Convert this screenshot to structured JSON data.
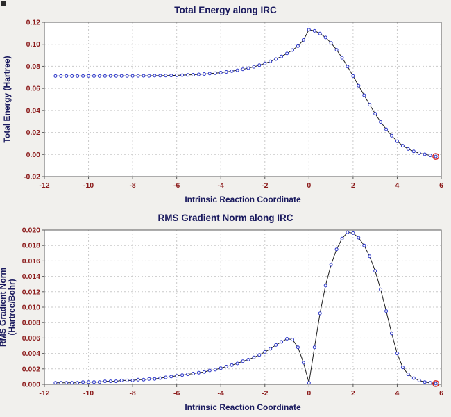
{
  "colors": {
    "page_bg": "#f1f0ed",
    "plot_bg": "#ffffff",
    "grid": "#c9c9c9",
    "frame": "#5a5a5a",
    "title": "#1a1a5e",
    "axis_label": "#1a1a5e",
    "tick_label": "#8b1a1a",
    "line": "#1c1c1c",
    "marker": "#2a35c8",
    "last_marker": "#d02020"
  },
  "chart_data": [
    {
      "type": "line",
      "title": "Total Energy along IRC",
      "xlabel": "Intrinsic Reaction Coordinate",
      "ylabel": "Total Energy (Hartree)",
      "xlim": [
        -12,
        6
      ],
      "ylim": [
        -0.02,
        0.12
      ],
      "xticks": [
        -12,
        -10,
        -8,
        -6,
        -4,
        -2,
        0,
        2,
        4,
        6
      ],
      "yticks": [
        -0.02,
        0,
        0.02,
        0.04,
        0.06,
        0.08,
        0.1,
        0.12
      ],
      "ytick_decimals": 2,
      "grid": true,
      "legend": false,
      "x": [
        -11.5,
        -11.25,
        -11,
        -10.75,
        -10.5,
        -10.25,
        -10,
        -9.75,
        -9.5,
        -9.25,
        -9,
        -8.75,
        -8.5,
        -8.25,
        -8,
        -7.75,
        -7.5,
        -7.25,
        -7,
        -6.75,
        -6.5,
        -6.25,
        -6,
        -5.75,
        -5.5,
        -5.25,
        -5,
        -4.75,
        -4.5,
        -4.25,
        -4,
        -3.75,
        -3.5,
        -3.25,
        -3,
        -2.75,
        -2.5,
        -2.25,
        -2,
        -1.75,
        -1.5,
        -1.25,
        -1,
        -0.75,
        -0.5,
        -0.25,
        0,
        0.25,
        0.5,
        0.75,
        1,
        1.25,
        1.5,
        1.75,
        2,
        2.25,
        2.5,
        2.75,
        3,
        3.25,
        3.5,
        3.75,
        4,
        4.25,
        4.5,
        4.75,
        5,
        5.25,
        5.5,
        5.75
      ],
      "y": [
        0.0712,
        0.0712,
        0.0712,
        0.0712,
        0.0712,
        0.0712,
        0.0712,
        0.0712,
        0.0712,
        0.0712,
        0.0713,
        0.0713,
        0.0713,
        0.0713,
        0.0713,
        0.0714,
        0.0714,
        0.0714,
        0.0715,
        0.0715,
        0.0716,
        0.0717,
        0.0718,
        0.072,
        0.0722,
        0.0724,
        0.0727,
        0.073,
        0.0734,
        0.0738,
        0.0743,
        0.0749,
        0.0756,
        0.0764,
        0.0773,
        0.0784,
        0.0796,
        0.081,
        0.0826,
        0.0845,
        0.0866,
        0.089,
        0.0917,
        0.0948,
        0.0984,
        0.104,
        0.1132,
        0.1122,
        0.1098,
        0.1062,
        0.1012,
        0.095,
        0.0878,
        0.0798,
        0.0712,
        0.0625,
        0.0538,
        0.0452,
        0.037,
        0.0295,
        0.0228,
        0.017,
        0.012,
        0.008,
        0.005,
        0.0028,
        0.0012,
        0.0002,
        -0.0008,
        -0.0018
      ],
      "last_point_highlight": true
    },
    {
      "type": "line",
      "title": "RMS Gradient Norm along IRC",
      "xlabel": "Intrinsic Reaction Coordinate",
      "ylabel": "RMS Gradient Norm\n(Hartree/Bohr)",
      "xlim": [
        -12,
        6
      ],
      "ylim": [
        0,
        0.02
      ],
      "xticks": [
        -12,
        -10,
        -8,
        -6,
        -4,
        -2,
        0,
        2,
        4,
        6
      ],
      "yticks": [
        0,
        0.002,
        0.004,
        0.006,
        0.008,
        0.01,
        0.012,
        0.014,
        0.016,
        0.018,
        0.02
      ],
      "ytick_decimals": 3,
      "grid": true,
      "legend": false,
      "x": [
        -11.5,
        -11.25,
        -11,
        -10.75,
        -10.5,
        -10.25,
        -10,
        -9.75,
        -9.5,
        -9.25,
        -9,
        -8.75,
        -8.5,
        -8.25,
        -8,
        -7.75,
        -7.5,
        -7.25,
        -7,
        -6.75,
        -6.5,
        -6.25,
        -6,
        -5.75,
        -5.5,
        -5.25,
        -5,
        -4.75,
        -4.5,
        -4.25,
        -4,
        -3.75,
        -3.5,
        -3.25,
        -3,
        -2.75,
        -2.5,
        -2.25,
        -2,
        -1.75,
        -1.5,
        -1.25,
        -1,
        -0.75,
        -0.5,
        -0.25,
        0,
        0.25,
        0.5,
        0.75,
        1,
        1.25,
        1.5,
        1.75,
        2,
        2.25,
        2.5,
        2.75,
        3,
        3.25,
        3.5,
        3.75,
        4,
        4.25,
        4.5,
        4.75,
        5,
        5.25,
        5.5,
        5.75
      ],
      "y": [
        0.0002,
        0.0002,
        0.0002,
        0.0002,
        0.0002,
        0.0003,
        0.0003,
        0.0003,
        0.0003,
        0.0004,
        0.0004,
        0.0004,
        0.0005,
        0.0005,
        0.0005,
        0.0006,
        0.0006,
        0.0007,
        0.0007,
        0.0008,
        0.0009,
        0.001,
        0.0011,
        0.0012,
        0.0013,
        0.0014,
        0.0015,
        0.0016,
        0.0018,
        0.0019,
        0.0021,
        0.0023,
        0.0025,
        0.0027,
        0.003,
        0.0032,
        0.0035,
        0.0038,
        0.0042,
        0.0046,
        0.0051,
        0.0055,
        0.0059,
        0.0058,
        0.0048,
        0.0028,
        0.0002,
        0.0048,
        0.0092,
        0.0128,
        0.0155,
        0.0175,
        0.0189,
        0.0197,
        0.0196,
        0.019,
        0.018,
        0.0166,
        0.0147,
        0.0123,
        0.0095,
        0.0066,
        0.004,
        0.0022,
        0.0013,
        0.0008,
        0.0005,
        0.0003,
        0.0002,
        0.0001
      ],
      "last_point_highlight": true
    }
  ]
}
